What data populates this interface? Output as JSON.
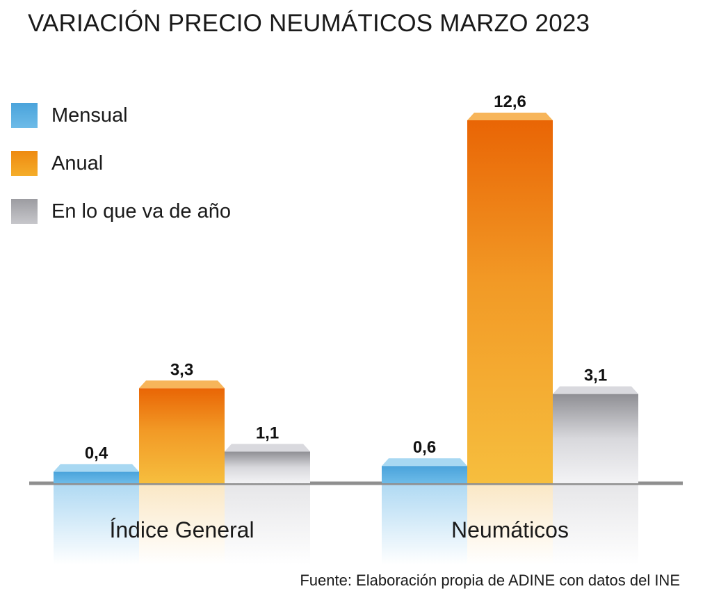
{
  "chart_data": {
    "type": "bar",
    "title": "VARIACIÓN PRECIO NEUMÁTICOS MARZO 2023",
    "categories": [
      "Índice General",
      "Neumáticos"
    ],
    "series": [
      {
        "name": "Mensual",
        "values": [
          0.4,
          0.6
        ],
        "labels": [
          "0,4",
          "0,6"
        ],
        "color": "#5aaee0"
      },
      {
        "name": "Anual",
        "values": [
          3.3,
          12.6
        ],
        "labels": [
          "3,3",
          "12,6"
        ],
        "color": "#f08a0c"
      },
      {
        "name": "En lo que va de año",
        "values": [
          1.1,
          3.1
        ],
        "labels": [
          "1,1",
          "3,1"
        ],
        "color": "#b4b4b8"
      }
    ],
    "ylim": [
      0,
      14
    ],
    "grid": false,
    "legend_position": "top-left",
    "source": "Fuente: Elaboración propia de ADINE con datos del INE"
  }
}
